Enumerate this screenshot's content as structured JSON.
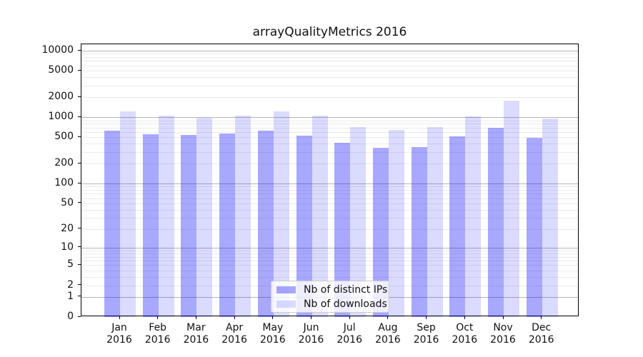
{
  "title": "arrayQualityMetrics 2016",
  "chart_data": {
    "type": "bar",
    "title": "arrayQualityMetrics 2016",
    "scale": "log1p",
    "grid": "on",
    "legend_position": "bottom-center",
    "categories": [
      "Jan",
      "Feb",
      "Mar",
      "Apr",
      "May",
      "Jun",
      "Jul",
      "Aug",
      "Sep",
      "Oct",
      "Nov",
      "Dec"
    ],
    "year_label": "2016",
    "series": [
      {
        "name": "Nb of distinct IPs",
        "color": "rgba(0,0,255,0.34)",
        "values": [
          630,
          560,
          540,
          575,
          625,
          530,
          410,
          350,
          360,
          510,
          690,
          490
        ]
      },
      {
        "name": "Nb of downloads",
        "color": "rgba(0,0,255,0.14)",
        "values": [
          1230,
          1070,
          990,
          1045,
          1230,
          1070,
          720,
          650,
          705,
          1020,
          1780,
          950
        ]
      }
    ],
    "y_ticks": [
      0,
      1,
      2,
      5,
      10,
      20,
      50,
      100,
      200,
      500,
      1000,
      2000,
      5000,
      10000
    ],
    "y_major_gridlines": [
      1,
      10,
      100,
      1000,
      10000
    ],
    "ylim": [
      0,
      10000
    ],
    "colors": {
      "major_grid": "#b5b5b5",
      "minor_grid": "#ebebeb",
      "axis": "#000000"
    }
  }
}
